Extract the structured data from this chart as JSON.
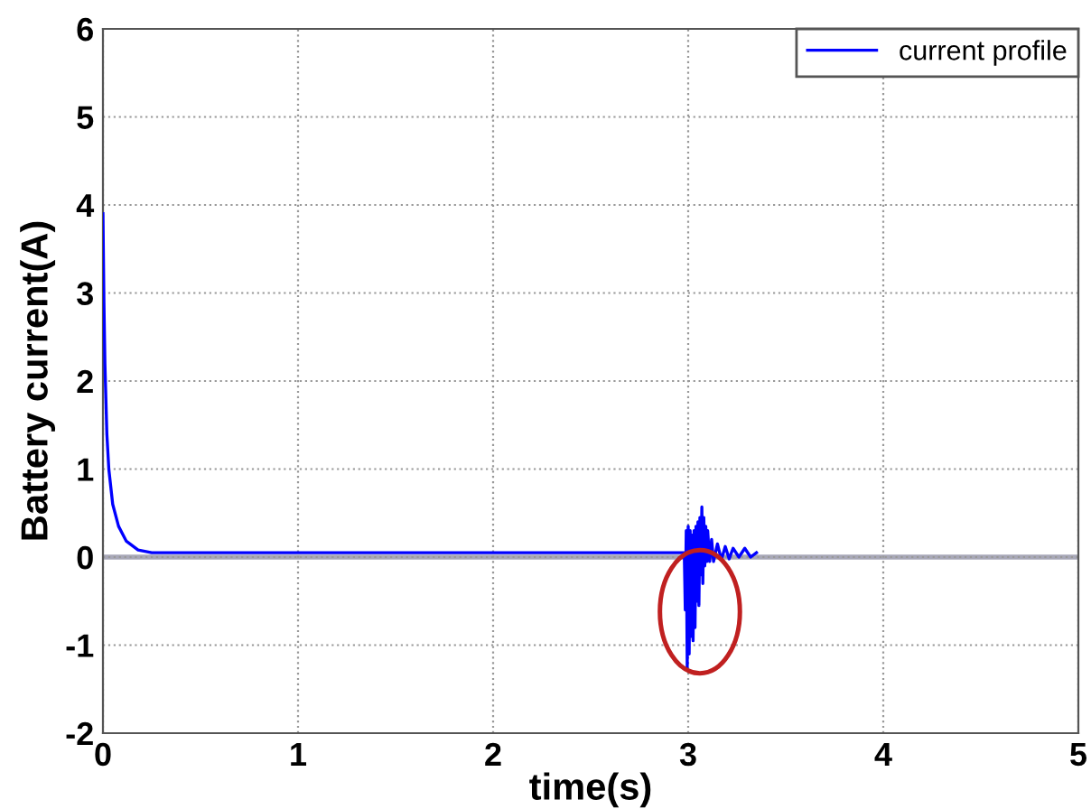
{
  "chart_data": {
    "type": "line",
    "xlabel": "time(s)",
    "ylabel": "Battery current(A)",
    "xlim": [
      0,
      5
    ],
    "xticks": [
      0,
      1,
      2,
      3,
      4,
      5
    ],
    "ylim": [
      -2,
      6
    ],
    "yticks": [
      -2,
      -1,
      0,
      1,
      2,
      3,
      4,
      5,
      6
    ],
    "grid": true,
    "legend": "top right",
    "marker": "none",
    "line_style": "solid",
    "ref_lines": [
      {
        "axis": "y",
        "value": 0,
        "color": "#a8a8b8",
        "line_style": "solid"
      }
    ],
    "series": [
      {
        "name": "current profile",
        "color": "#0000ff",
        "x": [
          0,
          0.005,
          0.01,
          0.02,
          0.03,
          0.05,
          0.08,
          0.12,
          0.18,
          0.25,
          2.97,
          2.98,
          2.985,
          2.99,
          2.995,
          3.0,
          3.005,
          3.01,
          3.015,
          3.02,
          3.025,
          3.03,
          3.035,
          3.04,
          3.045,
          3.05,
          3.055,
          3.06,
          3.065,
          3.07,
          3.075,
          3.08,
          3.085,
          3.09,
          3.095,
          3.1,
          3.11,
          3.12,
          3.13,
          3.15,
          3.17,
          3.19,
          3.21,
          3.23,
          3.26,
          3.29,
          3.32,
          3.35
        ],
        "values": [
          3.9,
          2.9,
          2.2,
          1.4,
          1.0,
          0.6,
          0.35,
          0.18,
          0.08,
          0.05,
          0.05,
          0.05,
          -0.6,
          0.3,
          -1.25,
          0.35,
          -1.1,
          0.3,
          -0.9,
          0.25,
          -0.95,
          0.3,
          -0.8,
          0.35,
          -0.5,
          0.4,
          -0.55,
          0.45,
          -0.2,
          0.57,
          -0.3,
          0.45,
          -0.1,
          0.35,
          -0.05,
          0.3,
          -0.05,
          0.2,
          -0.05,
          0.15,
          -0.03,
          0.12,
          -0.02,
          0.1,
          0.0,
          0.1,
          0.0,
          0.05
        ]
      }
    ]
  }
}
